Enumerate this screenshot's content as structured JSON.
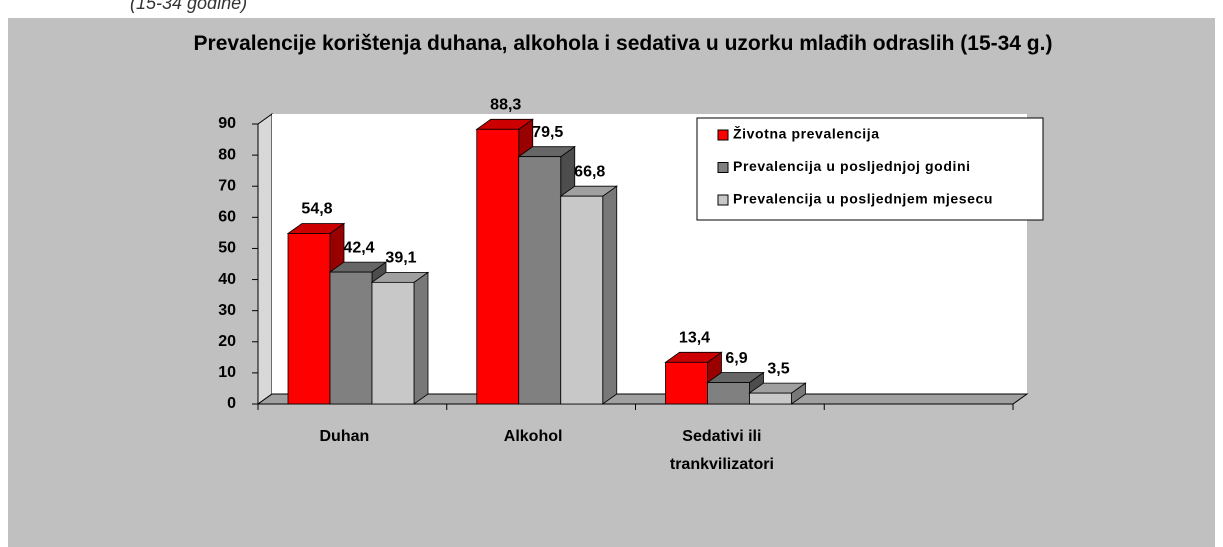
{
  "caption": "(15-34 godine)",
  "chart_data": {
    "type": "bar3d",
    "title": "Prevalencije korištenja duhana, alkohola i sedativa u uzorku mlađih odraslih (15-34 g.)",
    "categories": [
      "Duhan",
      "Alkohol",
      "Sedativi ili\ntrankvilizatori",
      null
    ],
    "series": [
      {
        "name": "Životna prevalencija",
        "color": "#ff0000",
        "values": [
          54.8,
          88.3,
          13.4,
          null
        ],
        "value_labels": [
          "54,8",
          "88,3",
          "13,4",
          null
        ]
      },
      {
        "name": "Prevalencija u posljednjoj godini",
        "color": "#808080",
        "values": [
          42.4,
          79.5,
          6.9,
          null
        ],
        "value_labels": [
          "42,4",
          "79,5",
          "6,9",
          null
        ]
      },
      {
        "name": "Prevalencija u posljednjem mjesecu",
        "color": "#c8c8c8",
        "values": [
          39.1,
          66.8,
          3.5,
          null
        ],
        "value_labels": [
          "39,1",
          "66,8",
          "3,5",
          null
        ]
      }
    ],
    "ylim": [
      0,
      90
    ],
    "yticks": [
      0,
      10,
      20,
      30,
      40,
      50,
      60,
      70,
      80,
      90
    ],
    "legend": "top-right"
  }
}
